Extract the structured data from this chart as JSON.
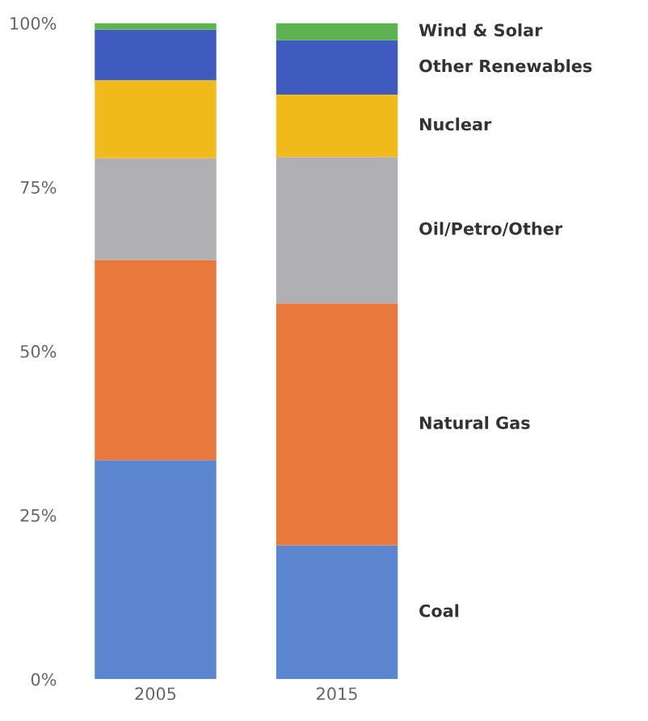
{
  "chart_data": {
    "type": "bar",
    "stacked": true,
    "categories": [
      "2005",
      "2015"
    ],
    "series": [
      {
        "name": "Coal",
        "color": "#5b87d0",
        "values": [
          33.4,
          20.4
        ]
      },
      {
        "name": "Natural Gas",
        "color": "#e8783c",
        "values": [
          30.5,
          36.9
        ]
      },
      {
        "name": "Oil/Petro/Other",
        "color": "#b0b0b4",
        "values": [
          15.5,
          22.3
        ]
      },
      {
        "name": "Nuclear",
        "color": "#f2bb1c",
        "values": [
          11.9,
          9.5
        ]
      },
      {
        "name": "Other Renewables",
        "color": "#3f5bbf",
        "values": [
          7.7,
          8.3
        ]
      },
      {
        "name": "Wind & Solar",
        "color": "#5cb350",
        "values": [
          1.0,
          2.6
        ]
      }
    ],
    "ylim": [
      0,
      100
    ],
    "yticks": [
      {
        "value": 0,
        "label": "0%"
      },
      {
        "value": 25,
        "label": "25%"
      },
      {
        "value": 50,
        "label": "50%"
      },
      {
        "value": 75,
        "label": "75%"
      },
      {
        "value": 100,
        "label": "100%"
      }
    ],
    "grid": false,
    "legend": false
  }
}
